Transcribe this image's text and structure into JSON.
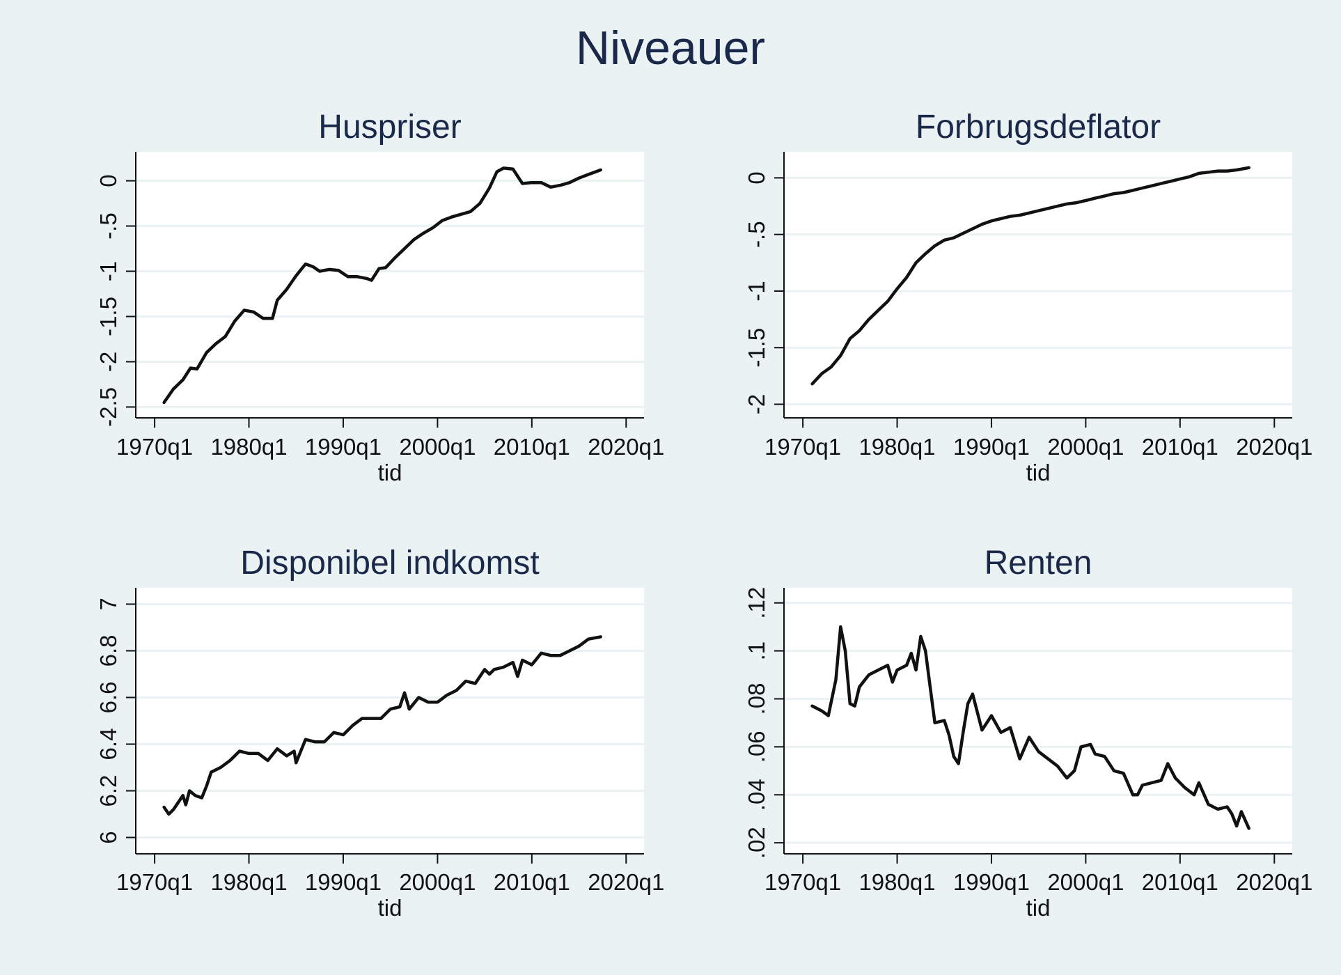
{
  "title": "Niveauer",
  "chart_data": [
    {
      "type": "line",
      "title": "Huspriser",
      "xlabel": "tid",
      "ylabel": "",
      "xlim": [
        1968,
        2021.9
      ],
      "ylim": [
        -2.62,
        0.32
      ],
      "xticks": [
        1970,
        1980,
        1990,
        2000,
        2010,
        2020
      ],
      "xtick_labels": [
        "1970q1",
        "1980q1",
        "1990q1",
        "2000q1",
        "2010q1",
        "2020q1"
      ],
      "yticks": [
        -2.5,
        -2,
        -1.5,
        -1,
        -0.5,
        0
      ],
      "ytick_labels": [
        "-2.5",
        "-2",
        "-1.5",
        "-1",
        "-.5",
        "0"
      ],
      "x": [
        1971.0,
        1972.0,
        1973.0,
        1973.8,
        1974.5,
        1975.5,
        1976.5,
        1977.5,
        1978.5,
        1979.5,
        1980.5,
        1981.5,
        1982.5,
        1983.0,
        1984.0,
        1985.0,
        1986.0,
        1986.8,
        1987.5,
        1988.5,
        1989.5,
        1990.5,
        1991.5,
        1992.5,
        1993.0,
        1993.8,
        1994.5,
        1995.5,
        1996.5,
        1997.5,
        1998.5,
        1999.5,
        2000.5,
        2001.5,
        2002.5,
        2003.5,
        2004.5,
        2005.5,
        2006.3,
        2007.0,
        2008.0,
        2008.5,
        2009.0,
        2010.0,
        2011.0,
        2012.0,
        2013.0,
        2014.0,
        2015.0,
        2016.0,
        2017.3
      ],
      "y": [
        -2.45,
        -2.3,
        -2.2,
        -2.07,
        -2.08,
        -1.9,
        -1.8,
        -1.72,
        -1.55,
        -1.43,
        -1.45,
        -1.52,
        -1.52,
        -1.32,
        -1.2,
        -1.05,
        -0.92,
        -0.95,
        -1.0,
        -0.98,
        -0.99,
        -1.06,
        -1.06,
        -1.08,
        -1.1,
        -0.97,
        -0.96,
        -0.85,
        -0.75,
        -0.65,
        -0.58,
        -0.52,
        -0.44,
        -0.4,
        -0.37,
        -0.34,
        -0.25,
        -0.08,
        0.1,
        0.14,
        0.13,
        0.05,
        -0.03,
        -0.02,
        -0.02,
        -0.07,
        -0.05,
        -0.02,
        0.03,
        0.07,
        0.12
      ]
    },
    {
      "type": "line",
      "title": "Forbrugsdeflator",
      "xlabel": "tid",
      "ylabel": "",
      "xlim": [
        1968,
        2021.9
      ],
      "ylim": [
        -2.12,
        0.23
      ],
      "xticks": [
        1970,
        1980,
        1990,
        2000,
        2010,
        2020
      ],
      "xtick_labels": [
        "1970q1",
        "1980q1",
        "1990q1",
        "2000q1",
        "2010q1",
        "2020q1"
      ],
      "yticks": [
        -2,
        -1.5,
        -1,
        -0.5,
        0
      ],
      "ytick_labels": [
        "-2",
        "-1.5",
        "-1",
        "-.5",
        "0"
      ],
      "x": [
        1971.0,
        1972.0,
        1973.0,
        1974.0,
        1975.0,
        1976.0,
        1977.0,
        1978.0,
        1979.0,
        1980.0,
        1981.0,
        1982.0,
        1983.0,
        1984.0,
        1985.0,
        1986.0,
        1987.0,
        1988.0,
        1989.0,
        1990.0,
        1991.0,
        1992.0,
        1993.0,
        1994.0,
        1995.0,
        1996.0,
        1997.0,
        1998.0,
        1999.0,
        2000.0,
        2001.0,
        2002.0,
        2003.0,
        2004.0,
        2005.0,
        2006.0,
        2007.0,
        2008.0,
        2009.0,
        2010.0,
        2011.0,
        2012.0,
        2013.0,
        2014.0,
        2015.0,
        2016.0,
        2017.3
      ],
      "y": [
        -1.82,
        -1.73,
        -1.67,
        -1.57,
        -1.42,
        -1.35,
        -1.25,
        -1.17,
        -1.09,
        -0.98,
        -0.88,
        -0.75,
        -0.67,
        -0.6,
        -0.55,
        -0.53,
        -0.49,
        -0.45,
        -0.41,
        -0.38,
        -0.36,
        -0.34,
        -0.33,
        -0.31,
        -0.29,
        -0.27,
        -0.25,
        -0.23,
        -0.22,
        -0.2,
        -0.18,
        -0.16,
        -0.14,
        -0.13,
        -0.11,
        -0.09,
        -0.07,
        -0.05,
        -0.03,
        -0.01,
        0.01,
        0.04,
        0.05,
        0.06,
        0.06,
        0.07,
        0.09
      ]
    },
    {
      "type": "line",
      "title": "Disponibel indkomst",
      "xlabel": "tid",
      "ylabel": "",
      "xlim": [
        1968,
        2021.9
      ],
      "ylim": [
        5.93,
        7.07
      ],
      "xticks": [
        1970,
        1980,
        1990,
        2000,
        2010,
        2020
      ],
      "xtick_labels": [
        "1970q1",
        "1980q1",
        "1990q1",
        "2000q1",
        "2010q1",
        "2020q1"
      ],
      "yticks": [
        6,
        6.2,
        6.4,
        6.6,
        6.8,
        7
      ],
      "ytick_labels": [
        "6",
        "6.2",
        "6.4",
        "6.6",
        "6.8",
        "7"
      ],
      "x": [
        1971.0,
        1971.5,
        1972.0,
        1973.0,
        1973.3,
        1973.7,
        1974.3,
        1975.0,
        1975.5,
        1976.0,
        1977.0,
        1978.0,
        1979.0,
        1980.0,
        1981.0,
        1982.0,
        1983.0,
        1984.0,
        1984.8,
        1985.0,
        1986.0,
        1987.0,
        1988.0,
        1989.0,
        1990.0,
        1991.0,
        1992.0,
        1993.0,
        1994.0,
        1995.0,
        1996.0,
        1996.5,
        1997.0,
        1998.0,
        1999.0,
        2000.0,
        2001.0,
        2002.0,
        2003.0,
        2004.0,
        2005.0,
        2005.5,
        2006.0,
        2007.0,
        2008.0,
        2008.5,
        2009.0,
        2010.0,
        2011.0,
        2012.0,
        2013.0,
        2014.0,
        2015.0,
        2016.0,
        2017.3
      ],
      "y": [
        6.13,
        6.1,
        6.12,
        6.18,
        6.14,
        6.2,
        6.18,
        6.17,
        6.22,
        6.28,
        6.3,
        6.33,
        6.37,
        6.36,
        6.36,
        6.33,
        6.38,
        6.35,
        6.37,
        6.32,
        6.42,
        6.41,
        6.41,
        6.45,
        6.44,
        6.48,
        6.51,
        6.51,
        6.51,
        6.55,
        6.56,
        6.62,
        6.55,
        6.6,
        6.58,
        6.58,
        6.61,
        6.63,
        6.67,
        6.66,
        6.72,
        6.7,
        6.72,
        6.73,
        6.75,
        6.69,
        6.76,
        6.74,
        6.79,
        6.78,
        6.78,
        6.8,
        6.82,
        6.85,
        6.86
      ]
    },
    {
      "type": "line",
      "title": "Renten",
      "xlabel": "tid",
      "ylabel": "",
      "xlim": [
        1968,
        2021.9
      ],
      "ylim": [
        0.0154,
        0.1263
      ],
      "xticks": [
        1970,
        1980,
        1990,
        2000,
        2010,
        2020
      ],
      "xtick_labels": [
        "1970q1",
        "1980q1",
        "1990q1",
        "2000q1",
        "2010q1",
        "2020q1"
      ],
      "yticks": [
        0.02,
        0.04,
        0.06,
        0.08,
        0.1,
        0.12
      ],
      "ytick_labels": [
        ".02",
        ".04",
        ".06",
        ".08",
        ".1",
        ".12"
      ],
      "x": [
        1971.0,
        1972.0,
        1972.7,
        1973.5,
        1974.0,
        1974.5,
        1975.0,
        1975.5,
        1976.0,
        1977.0,
        1978.0,
        1979.0,
        1979.5,
        1980.0,
        1981.0,
        1981.5,
        1982.0,
        1982.5,
        1983.0,
        1983.5,
        1984.0,
        1985.0,
        1985.5,
        1986.0,
        1986.5,
        1987.0,
        1987.5,
        1988.0,
        1989.0,
        1990.0,
        1991.0,
        1992.0,
        1993.0,
        1994.0,
        1995.0,
        1996.0,
        1997.0,
        1998.0,
        1998.8,
        1999.5,
        2000.5,
        2001.0,
        2002.0,
        2003.0,
        2004.0,
        2005.0,
        2005.5,
        2006.0,
        2007.0,
        2008.0,
        2008.7,
        2009.5,
        2010.5,
        2011.5,
        2012.0,
        2013.0,
        2014.0,
        2015.0,
        2015.5,
        2016.0,
        2016.5,
        2017.3
      ],
      "y": [
        0.077,
        0.075,
        0.073,
        0.088,
        0.11,
        0.1,
        0.078,
        0.077,
        0.085,
        0.09,
        0.092,
        0.094,
        0.087,
        0.092,
        0.094,
        0.099,
        0.092,
        0.106,
        0.1,
        0.085,
        0.07,
        0.071,
        0.065,
        0.056,
        0.053,
        0.066,
        0.078,
        0.082,
        0.067,
        0.073,
        0.066,
        0.068,
        0.055,
        0.064,
        0.058,
        0.055,
        0.052,
        0.047,
        0.05,
        0.06,
        0.061,
        0.057,
        0.056,
        0.05,
        0.049,
        0.04,
        0.04,
        0.044,
        0.045,
        0.046,
        0.053,
        0.047,
        0.043,
        0.04,
        0.045,
        0.036,
        0.034,
        0.035,
        0.032,
        0.027,
        0.033,
        0.026
      ]
    }
  ]
}
